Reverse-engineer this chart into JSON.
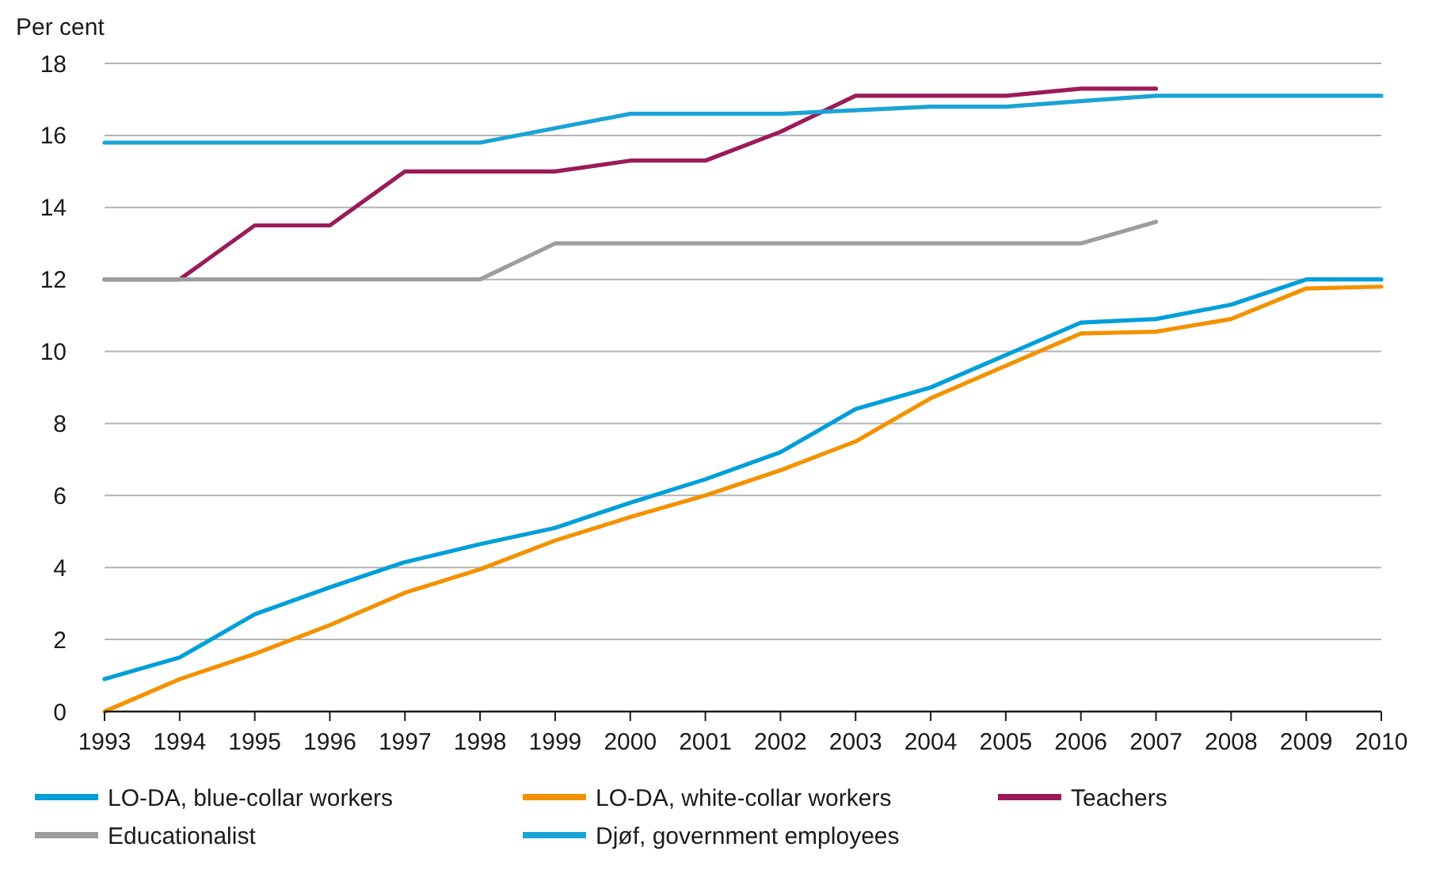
{
  "chart_data": {
    "type": "line",
    "ylabel": "Per cent",
    "x": [
      1993,
      1994,
      1995,
      1996,
      1997,
      1998,
      1999,
      2000,
      2001,
      2002,
      2003,
      2004,
      2005,
      2006,
      2007,
      2008,
      2009,
      2010
    ],
    "xlim": [
      1993,
      2010
    ],
    "xticks": [
      1993,
      1994,
      1995,
      1996,
      1997,
      1998,
      1999,
      2000,
      2001,
      2002,
      2003,
      2004,
      2005,
      2006,
      2007,
      2008,
      2009,
      2010
    ],
    "ylim": [
      0,
      18
    ],
    "yticks": [
      0,
      2,
      4,
      6,
      8,
      10,
      12,
      14,
      16,
      18
    ],
    "grid": "y",
    "legend": "bottom",
    "marker": "none",
    "line_style": "solid",
    "series": [
      {
        "name": "LO-DA, blue-collar workers",
        "color": "#009fda",
        "values": [
          0.9,
          1.5,
          2.7,
          3.45,
          4.15,
          4.65,
          5.1,
          5.8,
          6.45,
          7.2,
          8.4,
          9.0,
          9.9,
          10.8,
          10.9,
          11.3,
          12.0,
          12.0
        ]
      },
      {
        "name": "LO-DA, white-collar workers",
        "color": "#f39200",
        "values": [
          0,
          0.9,
          1.6,
          2.4,
          3.3,
          3.95,
          4.75,
          5.4,
          6.0,
          6.7,
          7.5,
          8.7,
          9.6,
          10.5,
          10.55,
          10.9,
          11.75,
          11.8
        ]
      },
      {
        "name": "Teachers",
        "color": "#9b1b5a",
        "values": [
          12,
          12,
          13.5,
          13.5,
          15,
          15,
          15,
          15.3,
          15.3,
          16.1,
          17.1,
          17.1,
          17.1,
          17.3,
          17.3,
          null,
          null,
          null
        ]
      },
      {
        "name": "Educationalist",
        "color": "#9d9d9d",
        "values": [
          12,
          12,
          12,
          12,
          12,
          12,
          13,
          13,
          13,
          13,
          13,
          13,
          13,
          13,
          13.6,
          null,
          null,
          null
        ]
      },
      {
        "name": "Djøf, government employees",
        "color": "#1ba3d6",
        "values": [
          15.8,
          15.8,
          15.8,
          15.8,
          15.8,
          15.8,
          16.2,
          16.6,
          16.6,
          16.6,
          16.7,
          16.8,
          16.8,
          16.95,
          17.1,
          17.1,
          17.1,
          17.1
        ]
      }
    ]
  }
}
